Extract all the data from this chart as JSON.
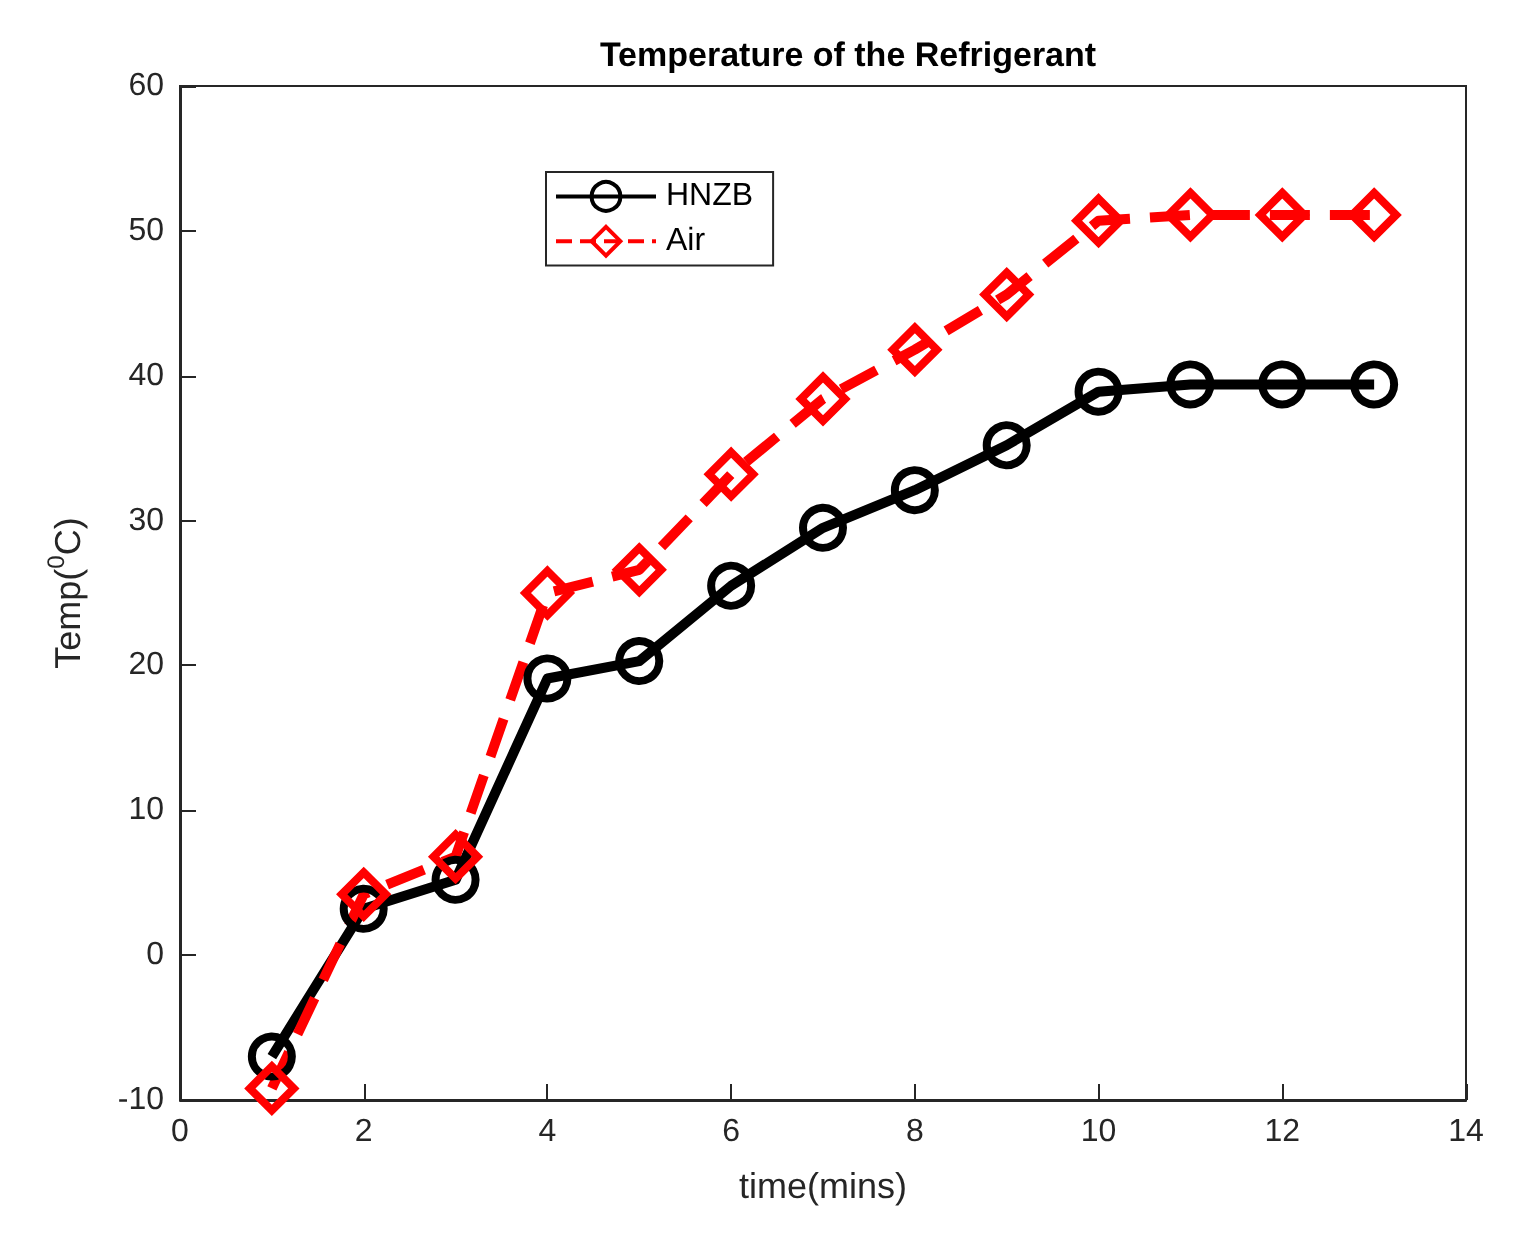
{
  "chart_data": {
    "type": "line",
    "title": "Temperature of the Refrigerant",
    "xlabel": "time(mins)",
    "ylabel": "Temp($^{0}$C)",
    "x": [
      1,
      2,
      3,
      4,
      5,
      6,
      7,
      8,
      9,
      10,
      11,
      12,
      13
    ],
    "series": [
      {
        "name": "HNZB",
        "color": "#000000",
        "marker": "circle",
        "line_style": "solid",
        "values": [
          -7.0,
          3.2,
          5.2,
          19.1,
          20.3,
          25.5,
          29.5,
          32.1,
          35.2,
          38.9,
          39.4,
          39.4,
          39.4
        ]
      },
      {
        "name": "Air",
        "color": "#ff0000",
        "marker": "diamond",
        "line_style": "dashed",
        "values": [
          -9.2,
          4.2,
          6.8,
          25.0,
          26.6,
          33.2,
          38.4,
          41.8,
          45.6,
          50.7,
          51.1,
          51.1,
          51.1
        ]
      }
    ],
    "xlim": [
      0,
      14
    ],
    "xticks": [
      0,
      2,
      4,
      6,
      8,
      10,
      12,
      14
    ],
    "ylim": [
      -10,
      60
    ],
    "yticks": [
      -10,
      0,
      10,
      20,
      30,
      40,
      50,
      60
    ],
    "grid": false,
    "legend": "top left"
  }
}
